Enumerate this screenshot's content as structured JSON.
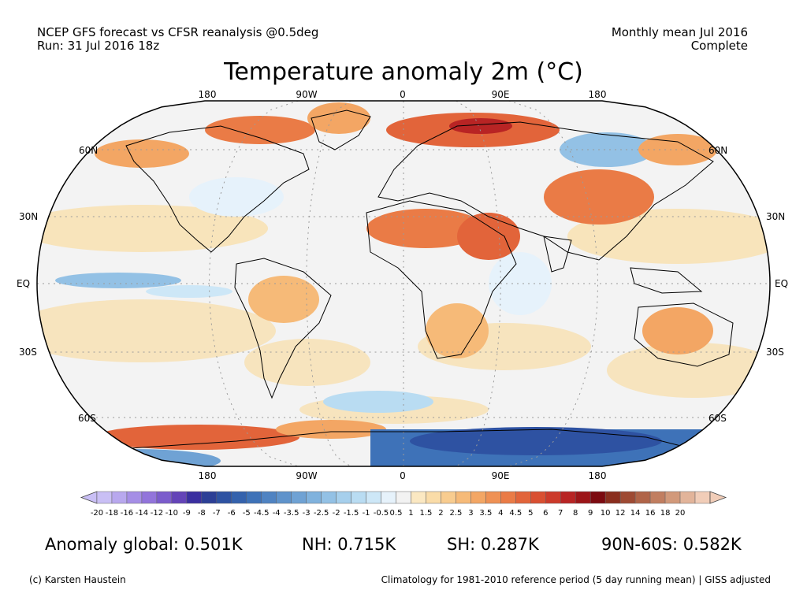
{
  "header": {
    "model_line": "NCEP GFS forecast vs CFSR reanalysis @0.5deg",
    "run_line": "Run: 31 Jul 2016 18z",
    "period_line": "Monthly mean Jul 2016",
    "status_line": "Complete"
  },
  "title": "Temperature anomaly 2m (°C)",
  "longitude_labels": [
    "180",
    "90W",
    "0",
    "90E",
    "180"
  ],
  "latitude_labels": {
    "left": [
      "60N",
      "30N",
      "EQ",
      "30S",
      "60S"
    ],
    "right": [
      "60N",
      "30N",
      "EQ",
      "30S",
      "60S"
    ]
  },
  "colorbar": {
    "tick_labels": [
      "-20",
      "-18",
      "-16",
      "-14",
      "-12",
      "-10",
      "-9",
      "-8",
      "-7",
      "-6",
      "-5",
      "-4.5",
      "-4",
      "-3.5",
      "-3",
      "-2.5",
      "-2",
      "-1.5",
      "-1",
      "-0.5",
      "0.5",
      "1",
      "1.5",
      "2",
      "2.5",
      "3",
      "3.5",
      "4",
      "4.5",
      "5",
      "6",
      "7",
      "8",
      "9",
      "10",
      "12",
      "14",
      "16",
      "18",
      "20"
    ],
    "colors": [
      "#c9bff5",
      "#b8a8ee",
      "#a58ee6",
      "#9274db",
      "#7b5ccc",
      "#6444b8",
      "#3a2fa0",
      "#2c3f96",
      "#2e52a2",
      "#3462ad",
      "#3e72b8",
      "#4f83c2",
      "#5f93cb",
      "#6fa2d4",
      "#80b2dd",
      "#93c1e5",
      "#a6cfec",
      "#b9dcf2",
      "#cde7f7",
      "#e6f2fb",
      "#f2f2f2",
      "#fbe8c2",
      "#fadca8",
      "#f8cc8f",
      "#f6ba78",
      "#f3a664",
      "#ef9154",
      "#ea7b46",
      "#e2643a",
      "#d94f31",
      "#cc3a2a",
      "#b82424",
      "#9c1518",
      "#7c0a10",
      "#8a2e1e",
      "#9e4a33",
      "#b06448",
      "#c17e60",
      "#d2997a",
      "#e2b49a",
      "#f1cdb8"
    ]
  },
  "map": {
    "ocean_neutral": "#f3f3f3",
    "warm_light": "#f8e0b0",
    "warm": "#f3a664",
    "hot": "#d94f31",
    "cool_light": "#cde7f7",
    "cool": "#80b2dd",
    "cold": "#3462ad"
  },
  "stats": {
    "global": "Anomaly global: 0.501K",
    "nh": "NH: 0.715K",
    "sh": "SH: 0.287K",
    "polar": "90N-60S: 0.582K"
  },
  "footer": {
    "credit": "(c) Karsten Haustein",
    "climatology": "Climatology for 1981-2010 reference period (5 day running mean) | GISS adjusted"
  }
}
